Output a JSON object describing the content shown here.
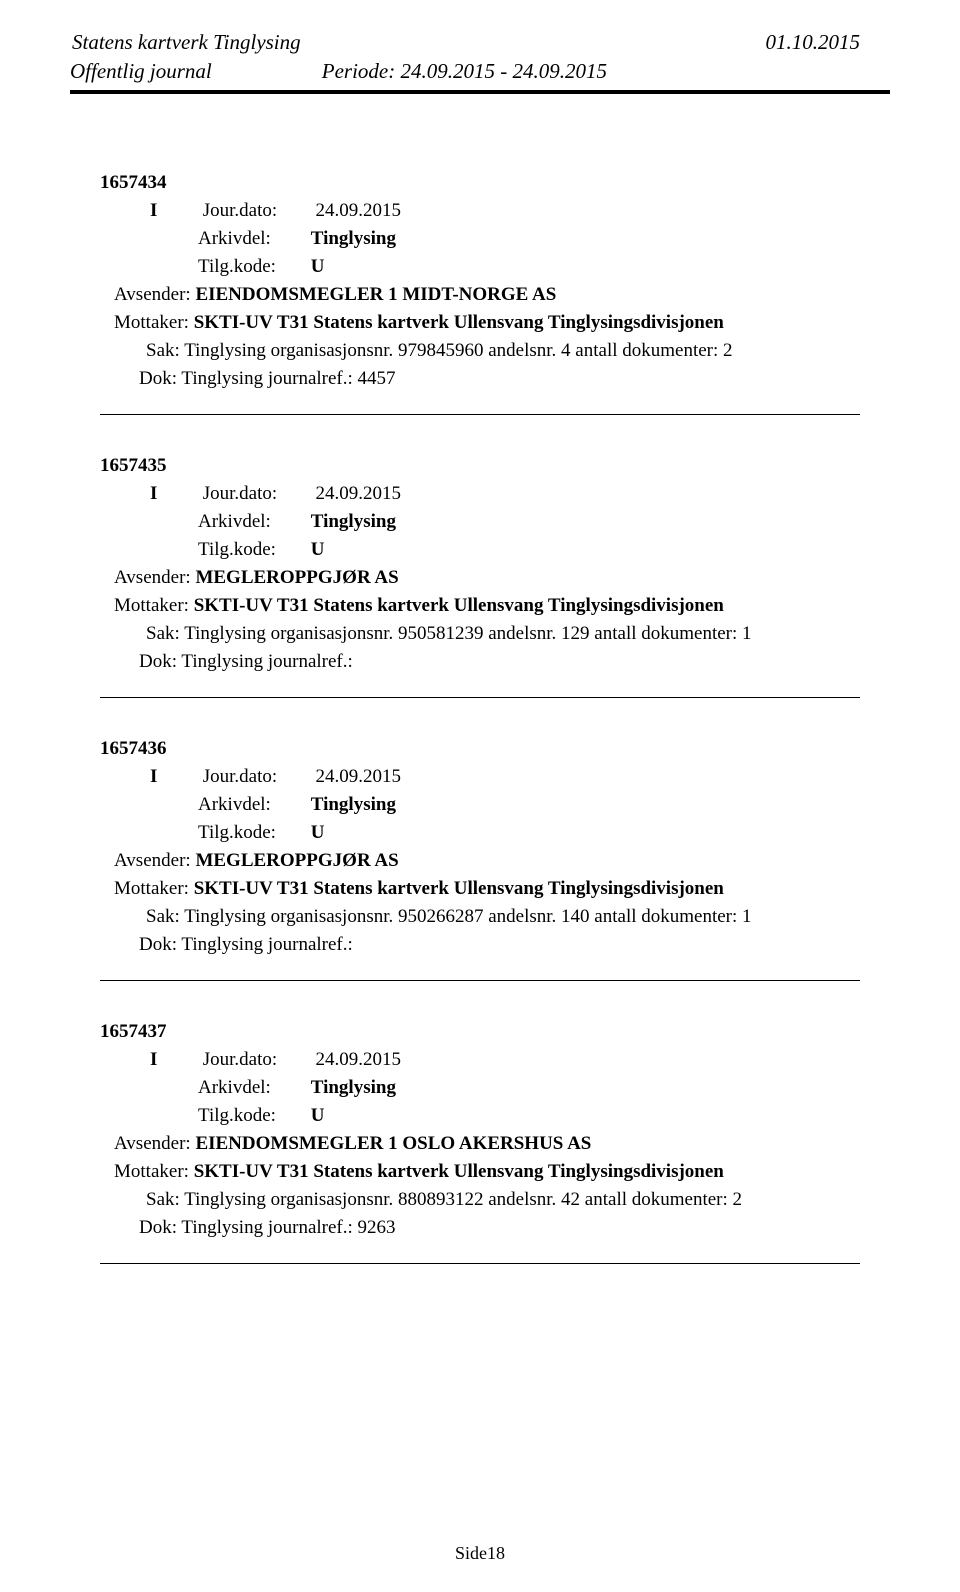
{
  "header": {
    "title_left": "Statens kartverk Tinglysing",
    "date_right": "01.10.2015",
    "subtitle_left": "Offentlig journal",
    "period": "Periode: 24.09.2015 - 24.09.2015"
  },
  "entries": [
    {
      "id": "1657434",
      "type": "I",
      "jour_label": "Jour.dato:",
      "jour_dato": "24.09.2015",
      "arkivdel_label": "Arkivdel:",
      "arkivdel": "Tinglysing",
      "tilg_label": "Tilg.kode:",
      "tilg_kode": "U",
      "avsender_label": "Avsender:",
      "avsender": "EIENDOMSMEGLER 1 MIDT-NORGE AS",
      "mottaker_label": "Mottaker:",
      "mottaker": "SKTI-UV T31 Statens kartverk Ullensvang Tinglysingsdivisjonen",
      "sak_label": "Sak:",
      "sak": "Tinglysing organisasjonsnr. 979845960 andelsnr. 4 antall dokumenter: 2",
      "dok_label": "Dok:",
      "dok": "Tinglysing journalref.: 4457"
    },
    {
      "id": "1657435",
      "type": "I",
      "jour_label": "Jour.dato:",
      "jour_dato": "24.09.2015",
      "arkivdel_label": "Arkivdel:",
      "arkivdel": "Tinglysing",
      "tilg_label": "Tilg.kode:",
      "tilg_kode": "U",
      "avsender_label": "Avsender:",
      "avsender": "MEGLEROPPGJØR AS",
      "mottaker_label": "Mottaker:",
      "mottaker": "SKTI-UV T31 Statens kartverk Ullensvang Tinglysingsdivisjonen",
      "sak_label": "Sak:",
      "sak": "Tinglysing organisasjonsnr. 950581239 andelsnr. 129 antall dokumenter: 1",
      "dok_label": "Dok:",
      "dok": "Tinglysing journalref.:"
    },
    {
      "id": "1657436",
      "type": "I",
      "jour_label": "Jour.dato:",
      "jour_dato": "24.09.2015",
      "arkivdel_label": "Arkivdel:",
      "arkivdel": "Tinglysing",
      "tilg_label": "Tilg.kode:",
      "tilg_kode": "U",
      "avsender_label": "Avsender:",
      "avsender": "MEGLEROPPGJØR AS",
      "mottaker_label": "Mottaker:",
      "mottaker": "SKTI-UV T31 Statens kartverk Ullensvang Tinglysingsdivisjonen",
      "sak_label": "Sak:",
      "sak": "Tinglysing organisasjonsnr. 950266287 andelsnr. 140 antall dokumenter: 1",
      "dok_label": "Dok:",
      "dok": "Tinglysing journalref.:"
    },
    {
      "id": "1657437",
      "type": "I",
      "jour_label": "Jour.dato:",
      "jour_dato": "24.09.2015",
      "arkivdel_label": "Arkivdel:",
      "arkivdel": "Tinglysing",
      "tilg_label": "Tilg.kode:",
      "tilg_kode": "U",
      "avsender_label": "Avsender:",
      "avsender": "EIENDOMSMEGLER 1 OSLO AKERSHUS AS",
      "mottaker_label": "Mottaker:",
      "mottaker": "SKTI-UV T31 Statens kartverk Ullensvang Tinglysingsdivisjonen",
      "sak_label": "Sak:",
      "sak": "Tinglysing organisasjonsnr. 880893122 andelsnr. 42 antall dokumenter: 2",
      "dok_label": "Dok:",
      "dok": "Tinglysing journalref.: 9263"
    }
  ],
  "footer": {
    "page_label": "Side18"
  }
}
